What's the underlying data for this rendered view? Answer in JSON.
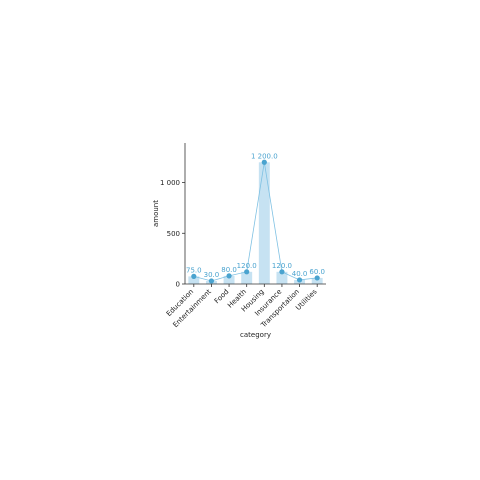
{
  "chart_data": {
    "type": "bar",
    "categories": [
      "Education",
      "Entertainment",
      "Food",
      "Health",
      "Housing",
      "Insurance",
      "Transportation",
      "Utilities"
    ],
    "series": [
      {
        "values": [
          75.0,
          30.0,
          80.0,
          120.0,
          1200.0,
          120.0,
          40.0,
          60.0
        ]
      }
    ],
    "data_labels": [
      "75.0",
      "30.0",
      "80.0",
      "120.0",
      "1 200.0",
      "120.0",
      "40.0",
      "60.0"
    ],
    "overlay": "line-with-markers",
    "xlabel": "category",
    "ylabel": "amount",
    "ylim": [
      0,
      1390
    ],
    "yticks": [
      0,
      500,
      1000
    ],
    "ytick_labels": [
      "0",
      "500",
      "1 000"
    ],
    "grid": false,
    "colors": {
      "bar": "#c6e2f2",
      "line": "#7fc1e3",
      "marker": "#4aa3cf",
      "label": "#4aa3cf"
    }
  }
}
